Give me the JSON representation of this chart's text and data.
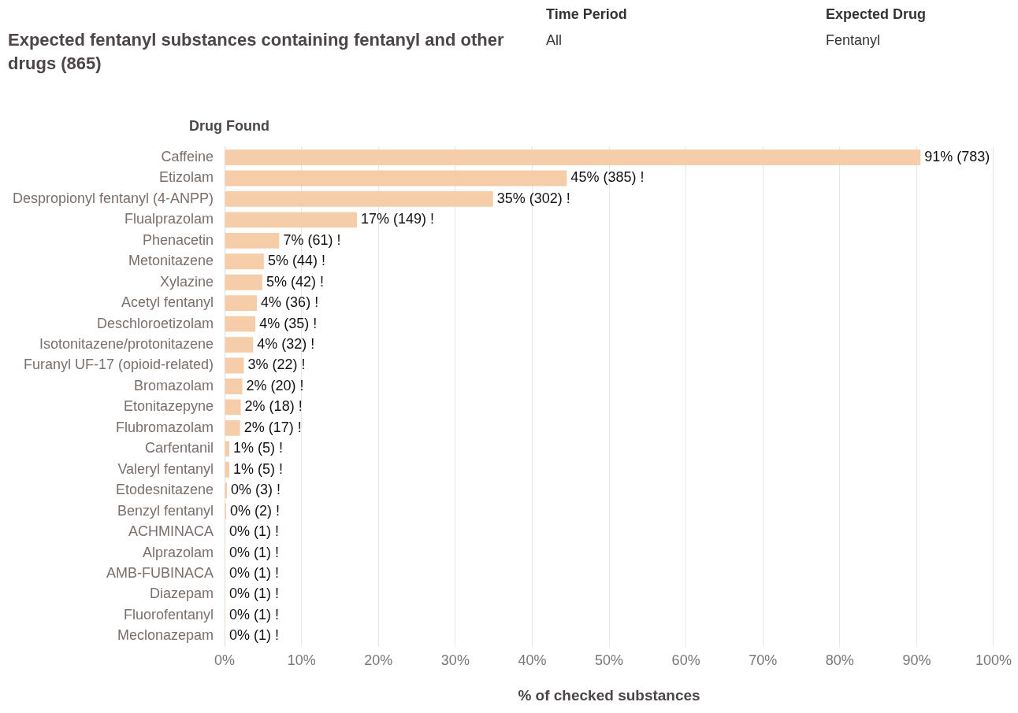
{
  "chart_data": {
    "type": "bar",
    "orientation": "horizontal",
    "title": "Expected fentanyl substances containing fentanyl and other drugs (865)",
    "annotations": [
      "Time Period",
      "All",
      "Expected Drug",
      "Fentanyl"
    ],
    "ylabel": "Drug Found",
    "xlabel": "% of checked substances",
    "categories": [
      "Caffeine",
      "Etizolam",
      "Despropionyl fentanyl (4-ANPP)",
      "Flualprazolam",
      "Phenacetin",
      "Metonitazene",
      "Xylazine",
      "Acetyl fentanyl",
      "Deschloroetizolam",
      "Isotonitazene/protonitazene",
      "Furanyl UF-17 (opioid-related)",
      "Bromazolam",
      "Etonitazepyne",
      "Flubromazolam",
      "Carfentanil",
      "Valeryl fentanyl",
      "Etodesnitazene",
      "Benzyl fentanyl",
      "ACHMINACA",
      "Alprazolam",
      "AMB-FUBINACA",
      "Diazepam",
      "Fluorofentanyl",
      "Meclonazepam"
    ],
    "series": [
      {
        "color": "#f5cda8",
        "values": [
          90.5,
          44.5,
          34.9,
          17.2,
          7.1,
          5.1,
          4.9,
          4.2,
          4.0,
          3.7,
          2.5,
          2.3,
          2.1,
          2.0,
          0.6,
          0.6,
          0.3,
          0.2,
          0.1,
          0.1,
          0.1,
          0.1,
          0.1,
          0.1
        ],
        "value_labels": [
          "91% (783)",
          "45% (385) !",
          "35% (302) !",
          "17% (149) !",
          "7% (61) !",
          "5% (44) !",
          "5% (42) !",
          "4% (36) !",
          "4% (35) !",
          "4% (32) !",
          "3% (22) !",
          "2% (20) !",
          "2% (18) !",
          "2% (17) !",
          "1% (5) !",
          "1% (5) !",
          "0% (3) !",
          "0% (2) !",
          "0% (1) !",
          "0% (1) !",
          "0% (1) !",
          "0% (1) !",
          "0% (1) !",
          "0% (1) !"
        ]
      }
    ],
    "xlim": [
      0,
      100
    ],
    "xticks": [
      {
        "value": 0,
        "label": "0%"
      },
      {
        "value": 10,
        "label": "10%"
      },
      {
        "value": 20,
        "label": "20%"
      },
      {
        "value": 30,
        "label": "30%"
      },
      {
        "value": 40,
        "label": "40%"
      },
      {
        "value": 50,
        "label": "50%"
      },
      {
        "value": 60,
        "label": "60%"
      },
      {
        "value": 70,
        "label": "70%"
      },
      {
        "value": 80,
        "label": "80%"
      },
      {
        "value": 90,
        "label": "90%"
      },
      {
        "value": 100,
        "label": "100%"
      }
    ],
    "grid": "x",
    "legend": false
  }
}
